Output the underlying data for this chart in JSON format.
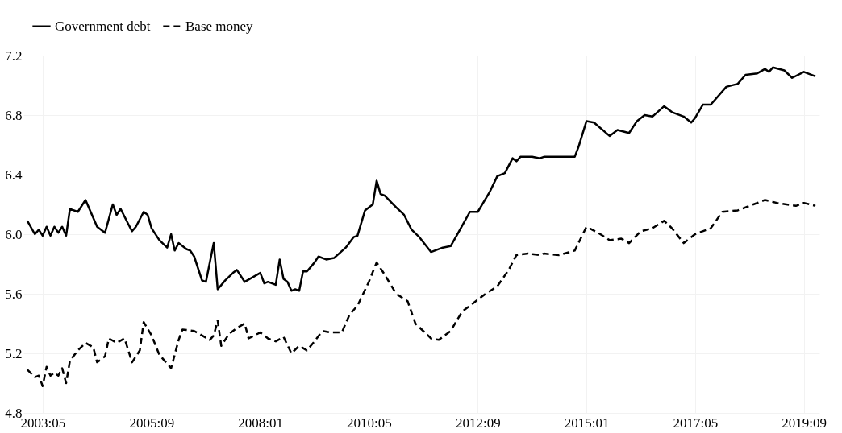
{
  "chart_data": {
    "type": "line",
    "legend": "top",
    "grid": true,
    "xlim": [
      "2002-12",
      "2020-01"
    ],
    "ylim": [
      4.8,
      7.2
    ],
    "yticks": [
      {
        "value": 4.8,
        "label": "4.8"
      },
      {
        "value": 5.2,
        "label": "5.2"
      },
      {
        "value": 5.6,
        "label": "5.6"
      },
      {
        "value": 6.0,
        "label": "6.0"
      },
      {
        "value": 6.4,
        "label": "6.4"
      },
      {
        "value": 6.8,
        "label": "6.8"
      },
      {
        "value": 7.2,
        "label": "7.2"
      }
    ],
    "xticks": [
      {
        "value": "2003-05",
        "label": "2003:05"
      },
      {
        "value": "2005-09",
        "label": "2005:09"
      },
      {
        "value": "2008-01",
        "label": "2008:01"
      },
      {
        "value": "2010-05",
        "label": "2010:05"
      },
      {
        "value": "2012-09",
        "label": "2012:09"
      },
      {
        "value": "2015-01",
        "label": "2015:01"
      },
      {
        "value": "2017-05",
        "label": "2017:05"
      },
      {
        "value": "2019-09",
        "label": "2019:09"
      }
    ],
    "series": [
      {
        "name": "Government debt",
        "color": "#000000",
        "line_style": "solid",
        "x": [
          "2003-01",
          "2003-03",
          "2003-04",
          "2003-05",
          "2003-06",
          "2003-07",
          "2003-08",
          "2003-09",
          "2003-10",
          "2003-11",
          "2003-12",
          "2004-02",
          "2004-04",
          "2004-07",
          "2004-09",
          "2004-11",
          "2004-12",
          "2005-01",
          "2005-03",
          "2005-04",
          "2005-05",
          "2005-07",
          "2005-08",
          "2005-09",
          "2005-11",
          "2006-01",
          "2006-02",
          "2006-03",
          "2006-04",
          "2006-06",
          "2006-07",
          "2006-08",
          "2006-10",
          "2006-11",
          "2007-01",
          "2007-02",
          "2007-04",
          "2007-06",
          "2007-07",
          "2007-09",
          "2008-01",
          "2008-02",
          "2008-03",
          "2008-05",
          "2008-06",
          "2008-07",
          "2008-08",
          "2008-09",
          "2008-10",
          "2008-11",
          "2008-12",
          "2009-01",
          "2009-03",
          "2009-04",
          "2009-06",
          "2009-08",
          "2009-11",
          "2010-01",
          "2010-02",
          "2010-04",
          "2010-06",
          "2010-07",
          "2010-08",
          "2010-09",
          "2010-12",
          "2011-02",
          "2011-04",
          "2011-06",
          "2011-09",
          "2011-12",
          "2012-02",
          "2012-04",
          "2012-07",
          "2012-09",
          "2012-12",
          "2013-02",
          "2013-04",
          "2013-06",
          "2013-07",
          "2013-08",
          "2013-11",
          "2014-01",
          "2014-02",
          "2014-06",
          "2014-10",
          "2014-11",
          "2015-01",
          "2015-03",
          "2015-07",
          "2015-09",
          "2015-12",
          "2016-02",
          "2016-04",
          "2016-06",
          "2016-09",
          "2016-11",
          "2017-02",
          "2017-04",
          "2017-05",
          "2017-07",
          "2017-09",
          "2018-01",
          "2018-04",
          "2018-06",
          "2018-09",
          "2018-11",
          "2018-12",
          "2019-01",
          "2019-04",
          "2019-06",
          "2019-09",
          "2019-12"
        ],
        "values": [
          6.09,
          6.0,
          6.03,
          5.99,
          6.05,
          5.99,
          6.05,
          6.01,
          6.05,
          5.99,
          6.17,
          6.15,
          6.23,
          6.05,
          6.01,
          6.2,
          6.13,
          6.17,
          6.07,
          6.02,
          6.05,
          6.15,
          6.13,
          6.04,
          5.96,
          5.91,
          6.0,
          5.89,
          5.94,
          5.9,
          5.89,
          5.85,
          5.69,
          5.68,
          5.94,
          5.63,
          5.69,
          5.74,
          5.76,
          5.68,
          5.74,
          5.67,
          5.68,
          5.66,
          5.83,
          5.7,
          5.68,
          5.62,
          5.63,
          5.62,
          5.75,
          5.75,
          5.81,
          5.85,
          5.83,
          5.84,
          5.91,
          5.98,
          5.99,
          6.16,
          6.2,
          6.36,
          6.27,
          6.26,
          6.18,
          6.13,
          6.03,
          5.98,
          5.88,
          5.91,
          5.92,
          6.01,
          6.15,
          6.15,
          6.28,
          6.39,
          6.41,
          6.51,
          6.49,
          6.52,
          6.52,
          6.51,
          6.52,
          6.52,
          6.52,
          6.59,
          6.76,
          6.75,
          6.66,
          6.7,
          6.68,
          6.76,
          6.8,
          6.79,
          6.86,
          6.82,
          6.79,
          6.75,
          6.78,
          6.87,
          6.87,
          6.99,
          7.01,
          7.07,
          7.08,
          7.11,
          7.09,
          7.12,
          7.1,
          7.05,
          7.09,
          7.06
        ]
      },
      {
        "name": "Base money",
        "color": "#000000",
        "line_style": "dashed",
        "x": [
          "2003-01",
          "2003-03",
          "2003-04",
          "2003-05",
          "2003-06",
          "2003-07",
          "2003-08",
          "2003-09",
          "2003-10",
          "2003-11",
          "2003-12",
          "2004-02",
          "2004-04",
          "2004-06",
          "2004-07",
          "2004-09",
          "2004-10",
          "2004-12",
          "2005-02",
          "2005-04",
          "2005-06",
          "2005-07",
          "2005-09",
          "2005-11",
          "2006-02",
          "2006-04",
          "2006-05",
          "2006-08",
          "2006-12",
          "2007-01",
          "2007-02",
          "2007-03",
          "2007-05",
          "2007-07",
          "2007-09",
          "2007-10",
          "2008-01",
          "2008-03",
          "2008-05",
          "2008-07",
          "2008-09",
          "2008-11",
          "2009-01",
          "2009-03",
          "2009-05",
          "2009-07",
          "2009-10",
          "2009-12",
          "2010-02",
          "2010-05",
          "2010-07",
          "2010-09",
          "2010-12",
          "2011-03",
          "2011-05",
          "2011-09",
          "2011-11",
          "2012-02",
          "2012-05",
          "2012-09",
          "2012-11",
          "2013-02",
          "2013-05",
          "2013-07",
          "2013-10",
          "2014-01",
          "2014-02",
          "2014-06",
          "2014-10",
          "2015-01",
          "2015-04",
          "2015-07",
          "2015-10",
          "2015-12",
          "2016-03",
          "2016-06",
          "2016-09",
          "2016-11",
          "2017-02",
          "2017-05",
          "2017-09",
          "2017-12",
          "2018-04",
          "2018-08",
          "2018-11",
          "2019-02",
          "2019-07",
          "2019-09",
          "2019-12"
        ],
        "values": [
          5.09,
          5.04,
          5.05,
          4.98,
          5.11,
          5.05,
          5.07,
          5.05,
          5.1,
          5.0,
          5.15,
          5.22,
          5.27,
          5.24,
          5.14,
          5.18,
          5.3,
          5.27,
          5.3,
          5.14,
          5.22,
          5.41,
          5.32,
          5.19,
          5.1,
          5.29,
          5.36,
          5.35,
          5.29,
          5.32,
          5.42,
          5.25,
          5.33,
          5.37,
          5.4,
          5.3,
          5.34,
          5.3,
          5.28,
          5.31,
          5.2,
          5.25,
          5.22,
          5.28,
          5.35,
          5.34,
          5.34,
          5.46,
          5.52,
          5.68,
          5.81,
          5.73,
          5.6,
          5.55,
          5.4,
          5.3,
          5.29,
          5.35,
          5.48,
          5.56,
          5.6,
          5.65,
          5.76,
          5.86,
          5.87,
          5.86,
          5.87,
          5.86,
          5.89,
          6.05,
          6.01,
          5.96,
          5.97,
          5.94,
          6.02,
          6.04,
          6.09,
          6.04,
          5.94,
          6.0,
          6.04,
          6.15,
          6.16,
          6.2,
          6.23,
          6.21,
          6.19,
          6.21,
          6.19
        ]
      }
    ]
  }
}
